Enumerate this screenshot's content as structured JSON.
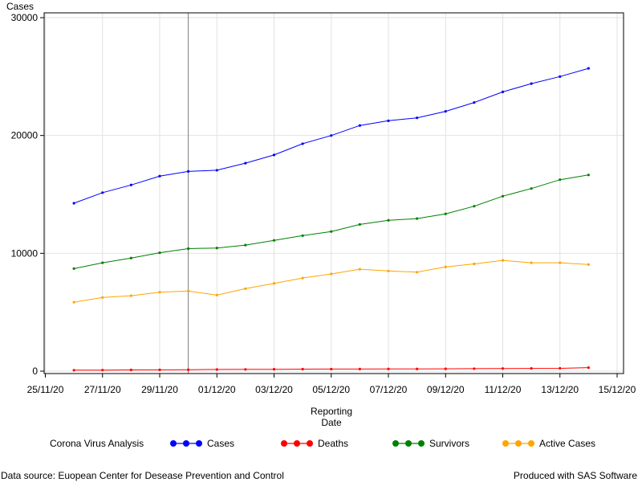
{
  "chart_data": {
    "type": "line",
    "ylabel": "Cases",
    "xlabel_lines": [
      "Reporting",
      "Date"
    ],
    "x": [
      "26/11/20",
      "27/11/20",
      "28/11/20",
      "29/11/20",
      "30/11/20",
      "01/12/20",
      "02/12/20",
      "03/12/20",
      "04/12/20",
      "05/12/20",
      "06/12/20",
      "07/12/20",
      "08/12/20",
      "09/12/20",
      "10/12/20",
      "11/12/20",
      "12/12/20",
      "13/12/20",
      "14/12/20"
    ],
    "xlim": [
      "25/11/20",
      "15/12/20"
    ],
    "x_ticks": [
      "25/11/20",
      "27/11/20",
      "29/11/20",
      "01/12/20",
      "03/12/20",
      "05/12/20",
      "07/12/20",
      "09/12/20",
      "11/12/20",
      "13/12/20",
      "15/12/20"
    ],
    "ylim": [
      0,
      30000
    ],
    "y_ticks": [
      0,
      10000,
      20000,
      30000
    ],
    "reference_line_x": "30/11/20",
    "grid": true,
    "series": [
      {
        "name": "Cases",
        "color": "#0000ff",
        "values": [
          14250,
          15150,
          15800,
          16550,
          16950,
          17050,
          17650,
          18350,
          19300,
          20000,
          20850,
          21250,
          21500,
          22050,
          22800,
          23700,
          24400,
          25000,
          25700
        ]
      },
      {
        "name": "Deaths",
        "color": "#ff0000",
        "values": [
          80,
          90,
          100,
          110,
          120,
          140,
          150,
          160,
          170,
          175,
          180,
          185,
          190,
          200,
          210,
          220,
          230,
          240,
          300
        ]
      },
      {
        "name": "Survivors",
        "color": "#008000",
        "values": [
          8700,
          9200,
          9600,
          10050,
          10400,
          10450,
          10700,
          11100,
          11500,
          11850,
          12450,
          12800,
          12950,
          13350,
          14000,
          14850,
          15500,
          16250,
          16650
        ]
      },
      {
        "name": "Active Cases",
        "color": "#ffa500",
        "values": [
          5850,
          6250,
          6400,
          6700,
          6800,
          6450,
          7000,
          7450,
          7900,
          8250,
          8650,
          8500,
          8400,
          8850,
          9100,
          9400,
          9200,
          9200,
          9050
        ]
      }
    ]
  },
  "legend": {
    "title": "Corona Virus Analysis"
  },
  "footer": {
    "left": "Data source: Euopean Center for Desease Prevention and Control",
    "right": "Produced with SAS Software"
  }
}
